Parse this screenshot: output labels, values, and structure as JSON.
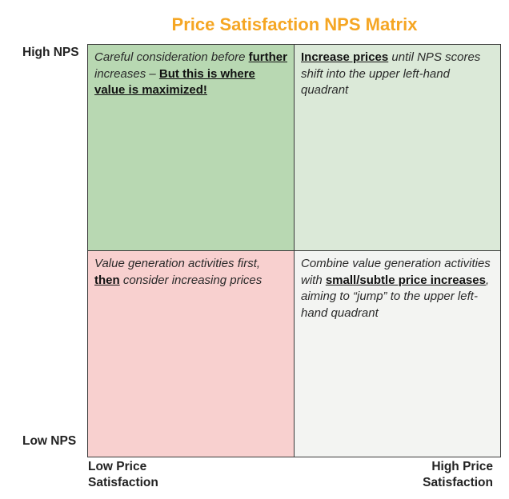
{
  "title": "Price Satisfaction NPS Matrix",
  "colors": {
    "title": "#f5a623",
    "top_left": "#b8d8b2",
    "top_right": "#dbe9d8",
    "bottom_left": "#f8d0cf",
    "bottom_right": "#f3f4f2"
  },
  "axes": {
    "y_high": "High NPS",
    "y_low": "Low NPS",
    "x_low_line1": "Low Price",
    "x_low_line2": "Satisfaction",
    "x_high_line1": "High Price",
    "x_high_line2": "Satisfaction"
  },
  "quadrants": {
    "top_left": {
      "t1": "Careful consideration before ",
      "b1": "further",
      "t2": " increases – ",
      "b2": "But this is where value is maximized!"
    },
    "top_right": {
      "b1": "Increase prices",
      "t1": " until NPS scores shift into the upper left-hand quadrant"
    },
    "bottom_left": {
      "t1": "Value generation activities first, ",
      "b1": "then",
      "t2": " consider increasing prices"
    },
    "bottom_right": {
      "t1": "Combine value generation activities with ",
      "b1": "small/subtle price increases",
      "t2": ", aiming to “jump” to the upper left-hand quadrant"
    }
  }
}
